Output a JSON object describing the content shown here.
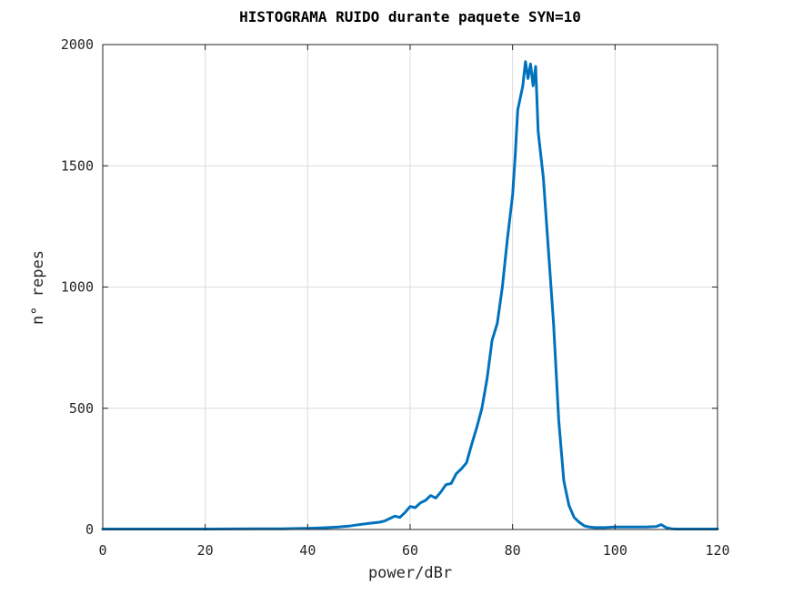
{
  "chart_data": {
    "type": "line",
    "title": "HISTOGRAMA RUIDO durante paquete SYN=10",
    "xlabel": "power/dBr",
    "ylabel": "n° repes",
    "xlim": [
      0,
      120
    ],
    "ylim": [
      0,
      2000
    ],
    "xticks": [
      "0",
      "20",
      "40",
      "60",
      "80",
      "100",
      "120"
    ],
    "yticks": [
      "0",
      "500",
      "1000",
      "1500",
      "2000"
    ],
    "grid": true,
    "legend": "none",
    "series": [
      {
        "color": "#0072BD",
        "x": [
          0,
          10,
          20,
          30,
          35,
          38,
          40,
          42,
          44,
          46,
          48,
          50,
          52,
          54,
          55,
          56,
          57,
          58,
          59,
          60,
          61,
          62,
          63,
          64,
          65,
          66,
          67,
          68,
          69,
          70,
          71,
          72,
          73,
          74,
          75,
          76,
          77,
          78,
          79,
          80,
          80.5,
          81,
          82,
          82.5,
          83,
          83.5,
          84,
          84.5,
          85,
          86,
          87,
          88,
          89,
          90,
          91,
          92,
          93,
          94,
          95,
          96,
          98,
          100,
          102,
          104,
          106,
          108,
          109,
          110,
          111,
          112,
          115,
          120
        ],
        "y": [
          2,
          2,
          2,
          3,
          3,
          4,
          5,
          6,
          8,
          10,
          14,
          20,
          25,
          30,
          35,
          45,
          55,
          50,
          70,
          95,
          90,
          110,
          120,
          140,
          130,
          155,
          185,
          190,
          230,
          250,
          275,
          350,
          420,
          500,
          620,
          780,
          850,
          1000,
          1200,
          1380,
          1540,
          1730,
          1830,
          1930,
          1860,
          1920,
          1830,
          1910,
          1640,
          1450,
          1150,
          850,
          450,
          200,
          100,
          50,
          30,
          15,
          10,
          8,
          8,
          10,
          10,
          10,
          10,
          12,
          20,
          8,
          3,
          2,
          2,
          2
        ]
      }
    ]
  }
}
